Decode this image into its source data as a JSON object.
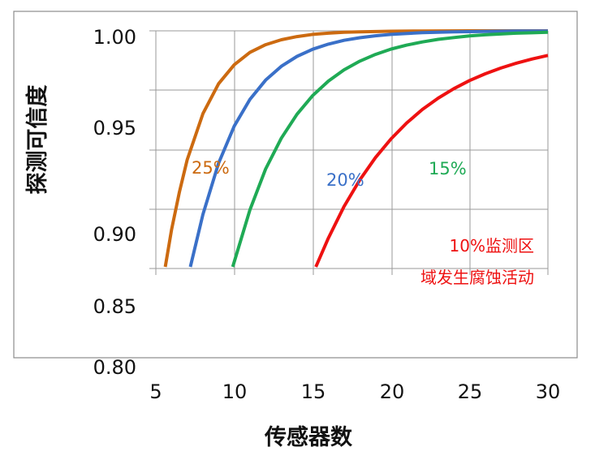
{
  "chart_data": {
    "type": "line",
    "title": "",
    "xlabel": "传感器数",
    "ylabel": "探测可信度",
    "xlim": [
      5,
      30
    ],
    "ylim": [
      0.8,
      1.0
    ],
    "x_ticks": [
      "5",
      "10",
      "15",
      "20",
      "25",
      "30"
    ],
    "y_ticks": [
      "1.00",
      "0.95",
      "0.90",
      "0.85",
      "0.80"
    ],
    "grid": true,
    "series": [
      {
        "name": "25%",
        "color": "#cc6a10",
        "x": [
          5.6,
          6,
          6.5,
          7,
          8,
          9,
          10,
          11,
          12,
          13,
          14,
          15,
          16,
          17,
          18,
          20,
          22,
          25,
          30
        ],
        "y": [
          0.8808,
          0.8995,
          0.9186,
          0.9349,
          0.9582,
          0.9733,
          0.9829,
          0.9891,
          0.993,
          0.9955,
          0.9971,
          0.9982,
          0.9988,
          0.9993,
          0.9995,
          0.9998,
          0.9999,
          1.0,
          1.0
        ]
      },
      {
        "name": "20%",
        "color": "#3a70c8",
        "x": [
          7.2,
          8,
          9,
          10,
          11,
          12,
          13,
          14,
          15,
          16,
          17,
          18,
          19,
          20,
          22,
          24,
          26,
          28,
          30
        ],
        "y": [
          0.8808,
          0.9073,
          0.9332,
          0.9519,
          0.9654,
          0.9751,
          0.9821,
          0.9871,
          0.9907,
          0.9933,
          0.9952,
          0.9965,
          0.9975,
          0.9982,
          0.9991,
          0.9995,
          0.9997,
          0.9999,
          0.9999
        ]
      },
      {
        "name": "15%",
        "color": "#1faa55",
        "x": [
          9.9,
          11,
          12,
          13,
          14,
          15,
          16,
          17,
          18,
          19,
          20,
          21,
          22,
          23,
          24,
          25,
          26,
          27,
          28,
          29,
          30
        ],
        "y": [
          0.8808,
          0.9096,
          0.9302,
          0.9458,
          0.9579,
          0.9673,
          0.9746,
          0.9803,
          0.9847,
          0.9881,
          0.9908,
          0.9928,
          0.9944,
          0.9957,
          0.9966,
          0.9974,
          0.998,
          0.9984,
          0.9988,
          0.999,
          0.9993
        ]
      },
      {
        "name": "10%",
        "color": "#ee1111",
        "x": [
          15.2,
          16,
          17,
          18,
          19,
          20,
          21,
          22,
          23,
          24,
          25,
          26,
          27,
          28,
          29,
          30
        ],
        "y": [
          0.8808,
          0.8953,
          0.9113,
          0.9247,
          0.936,
          0.9455,
          0.9535,
          0.9603,
          0.966,
          0.9708,
          0.9749,
          0.9783,
          0.9812,
          0.9837,
          0.9858,
          0.9876
        ]
      }
    ],
    "annotations": {
      "s10_line1": "10%监测区",
      "s10_line2": "域发生腐蚀活动"
    }
  }
}
